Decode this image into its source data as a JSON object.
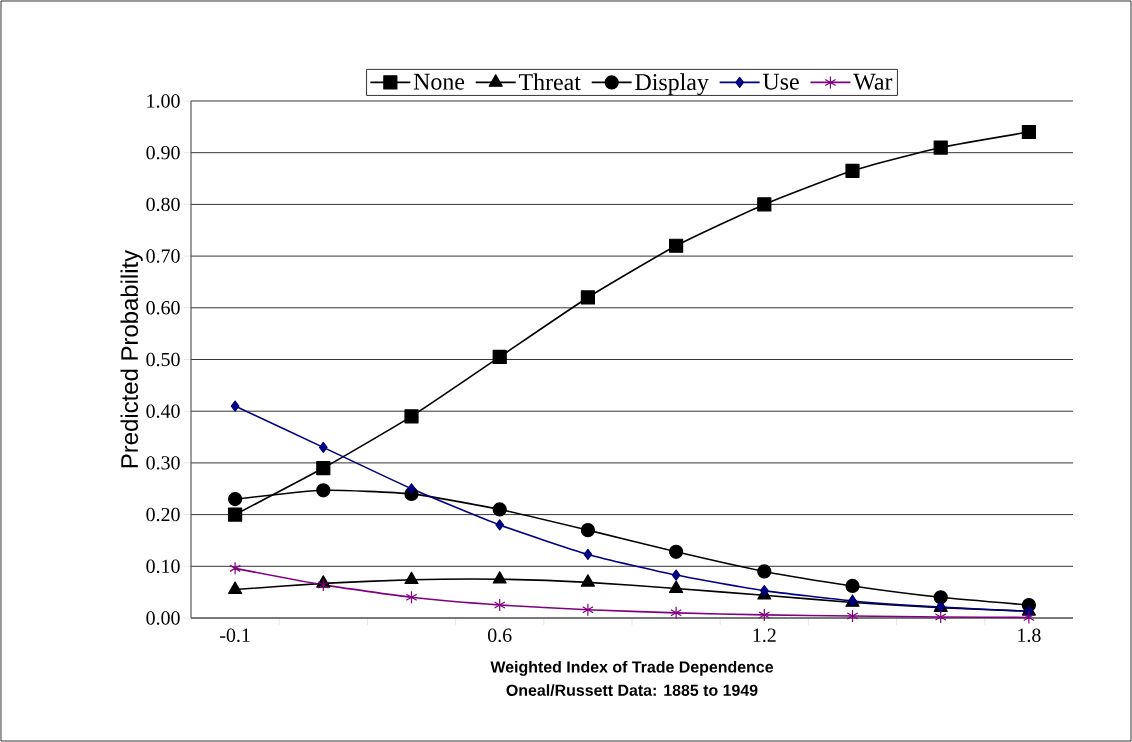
{
  "chart_data": {
    "type": "line",
    "categories": [
      "-0.1",
      null,
      null,
      "0.6",
      null,
      null,
      "1.2",
      null,
      null,
      "1.8"
    ],
    "series": [
      {
        "name": "None",
        "color": "#000000",
        "marker": "square",
        "values": [
          0.2,
          0.29,
          0.39,
          0.505,
          0.62,
          0.72,
          0.8,
          0.865,
          0.91,
          0.94
        ]
      },
      {
        "name": "Threat",
        "color": "#000000",
        "marker": "triangle",
        "values": [
          0.055,
          0.067,
          0.074,
          0.075,
          0.069,
          0.057,
          0.044,
          0.03,
          0.02,
          0.013
        ]
      },
      {
        "name": "Display",
        "color": "#000000",
        "marker": "circle",
        "values": [
          0.23,
          0.247,
          0.24,
          0.21,
          0.17,
          0.128,
          0.09,
          0.062,
          0.04,
          0.025
        ]
      },
      {
        "name": "Use",
        "color": "#000080",
        "marker": "diamond",
        "values": [
          0.41,
          0.33,
          0.25,
          0.18,
          0.123,
          0.083,
          0.053,
          0.033,
          0.021,
          0.013
        ]
      },
      {
        "name": "War",
        "color": "#800080",
        "marker": "cross",
        "values": [
          0.096,
          0.064,
          0.04,
          0.025,
          0.016,
          0.01,
          0.006,
          0.004,
          0.002,
          0.001
        ]
      }
    ],
    "ylabel": "Predicted Probability",
    "xlabel": "Weighted Index of Trade Dependence",
    "annotations": [
      "Oneal/Russett Data: 1885 to 1949"
    ],
    "ylim": [
      0,
      1
    ],
    "yticks": [
      {
        "value": 0,
        "label": "0.00"
      },
      {
        "value": 0.1,
        "label": "0.10"
      },
      {
        "value": 0.2,
        "label": "0.20"
      },
      {
        "value": 0.3,
        "label": "0.30"
      },
      {
        "value": 0.4,
        "label": "0.40"
      },
      {
        "value": 0.5,
        "label": "0.50"
      },
      {
        "value": 0.6,
        "label": "0.60"
      },
      {
        "value": 0.7,
        "label": "0.70"
      },
      {
        "value": 0.8,
        "label": "0.80"
      },
      {
        "value": 0.9,
        "label": "0.90"
      },
      {
        "value": 1,
        "label": "1.00"
      }
    ],
    "grid": "y",
    "legend": "top"
  }
}
